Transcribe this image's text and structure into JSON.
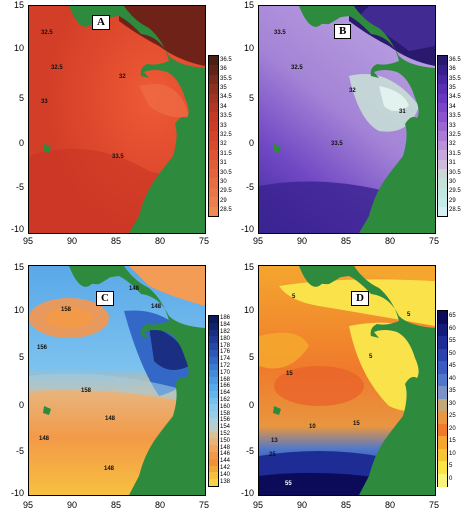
{
  "panels": [
    {
      "letter": "A",
      "x_ticks": [
        "95",
        "90",
        "85",
        "80",
        "75"
      ],
      "y_ticks": [
        "15",
        "10",
        "5",
        "0",
        "-5",
        "-10"
      ],
      "colorbar_labels": [
        "36.5",
        "36",
        "35.5",
        "35",
        "34.5",
        "34",
        "33.5",
        "33",
        "32.5",
        "32",
        "31.5",
        "31",
        "30.5",
        "30",
        "29.5",
        "29",
        "28.5"
      ],
      "colorbar_colors": [
        "#4a1f14",
        "#5e2418",
        "#7a2a1d",
        "#8f2f20",
        "#a23223",
        "#b33524",
        "#c23926",
        "#cc3d28",
        "#d4432b",
        "#da4b2e",
        "#df5433",
        "#e25c37",
        "#e5643b",
        "#e86d40",
        "#ea7645",
        "#ec7f4b",
        "#ee8a52"
      ],
      "contour_labels": [
        "32.5",
        "32.5",
        "32",
        "33",
        "33.5"
      ],
      "colors": {
        "base": "#d8442c",
        "light": "#e86a42",
        "dark": "#7a2418",
        "land": "#2e8b3e"
      }
    },
    {
      "letter": "B",
      "x_ticks": [
        "95",
        "90",
        "85",
        "80",
        "75"
      ],
      "y_ticks": [
        "15",
        "10",
        "5",
        "0",
        "-5",
        "-10"
      ],
      "colorbar_labels": [
        "36.5",
        "36",
        "35.5",
        "35",
        "34.5",
        "34",
        "33.5",
        "33",
        "32.5",
        "32",
        "31.5",
        "31",
        "30.5",
        "30",
        "29.5",
        "29",
        "28.5"
      ],
      "colorbar_colors": [
        "#2a1a6e",
        "#37208a",
        "#4a27a2",
        "#5a2fb4",
        "#6a38c0",
        "#7a45c8",
        "#8a55cc",
        "#9a68d0",
        "#aa7cd4",
        "#b992d8",
        "#c6a8dc",
        "#cfbadc",
        "#cfd4d6",
        "#c6e2d6",
        "#bfe8e0",
        "#c4eaea",
        "#d4f0f2"
      ],
      "contour_labels": [
        "33.5",
        "32.5",
        "32",
        "31",
        "33.5"
      ],
      "colors": {
        "base": "#8a55cc",
        "light": "#c7b3e6",
        "dark": "#3a2490",
        "land": "#2e8b3e"
      }
    },
    {
      "letter": "C",
      "x_ticks": [
        "95",
        "90",
        "85",
        "80",
        "75"
      ],
      "y_ticks": [
        "15",
        "10",
        "5",
        "0",
        "-5",
        "-10"
      ],
      "colorbar_labels": [
        "186",
        "184",
        "182",
        "180",
        "178",
        "176",
        "174",
        "172",
        "170",
        "168",
        "166",
        "164",
        "162",
        "160",
        "158",
        "156",
        "154",
        "152",
        "150",
        "148",
        "146",
        "144",
        "142",
        "140",
        "138"
      ],
      "colorbar_colors": [
        "#0b1a5a",
        "#12236e",
        "#1a2e82",
        "#213a96",
        "#2848a8",
        "#2e58b8",
        "#3468c6",
        "#3a7ad2",
        "#428cdc",
        "#4c9ce4",
        "#58aaea",
        "#66b6ee",
        "#76c0ef",
        "#86c8ee",
        "#98cdea",
        "#abd0e0",
        "#c2ccc4",
        "#d8c29e",
        "#e8b47c",
        "#f0a65e",
        "#f39a48",
        "#f49038",
        "#f5a838",
        "#f7c040",
        "#f9d448"
      ],
      "contour_labels": [
        "158",
        "156",
        "158",
        "148",
        "148",
        "148",
        "148",
        "148"
      ],
      "colors": {
        "base": "#6ab4ec",
        "light": "#f2a055",
        "dark": "#1a2e82",
        "land": "#2e8b3e"
      }
    },
    {
      "letter": "D",
      "x_ticks": [
        "95",
        "90",
        "85",
        "80",
        "75"
      ],
      "y_ticks": [
        "15",
        "10",
        "5",
        "0",
        "-5",
        "-10"
      ],
      "colorbar_labels": [
        "65",
        "60",
        "55",
        "50",
        "45",
        "40",
        "35",
        "30",
        "25",
        "20",
        "15",
        "10",
        "5",
        "0"
      ],
      "colorbar_colors": [
        "#0b0b5a",
        "#141a78",
        "#1e2c96",
        "#2a42ae",
        "#3a5cc2",
        "#5078ca",
        "#7a94c8",
        "#c2a878",
        "#e89640",
        "#f07a2c",
        "#f4a62e",
        "#f7c634",
        "#f8e444",
        "#fbf47a"
      ],
      "contour_labels": [
        "5",
        "5",
        "15",
        "10",
        "15",
        "13",
        "25",
        "55",
        "5"
      ],
      "colors": {
        "base": "#f0862e",
        "light": "#fae24a",
        "dark": "#1a2a8e",
        "land": "#2e8b3e"
      }
    }
  ]
}
